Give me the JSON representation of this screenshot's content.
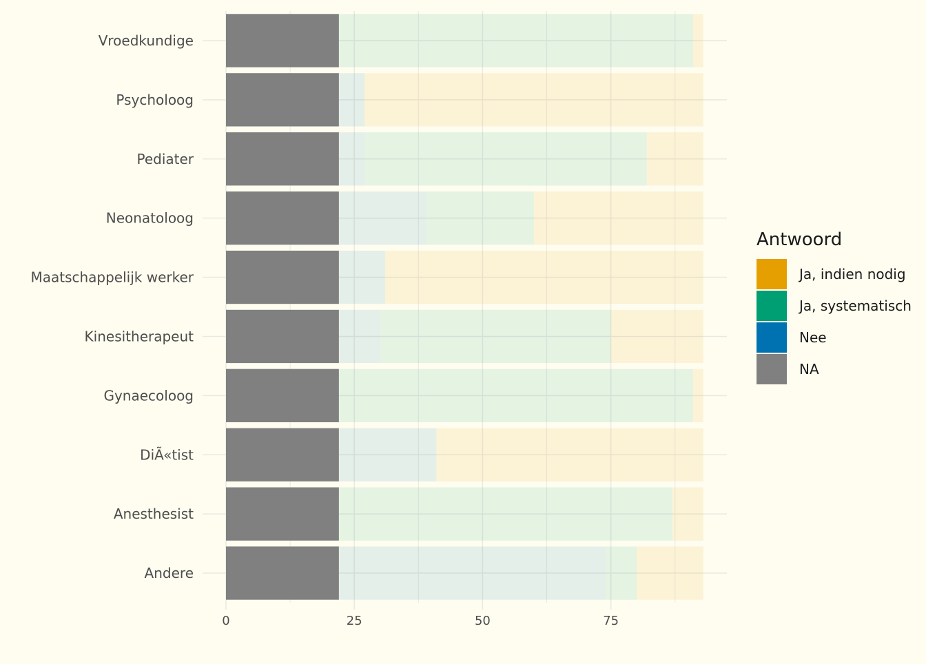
{
  "chart_data": {
    "type": "bar",
    "orientation": "horizontal",
    "stacked": true,
    "categories": [
      "Andere",
      "Anesthesist",
      "DiÃ«tist",
      "Gynaecoloog",
      "Kinesitherapeut",
      "Maatschappelijk werker",
      "Neonatoloog",
      "Pediater",
      "Psycholoog",
      "Vroedkundige"
    ],
    "series": [
      {
        "name": "NA",
        "color": "#808080",
        "values": [
          22,
          22,
          22,
          22,
          22,
          22,
          22,
          22,
          22,
          22
        ]
      },
      {
        "name": "Nee",
        "color": "#0072B2",
        "values": [
          52,
          0,
          19,
          0,
          8,
          9,
          17,
          5,
          5,
          0
        ]
      },
      {
        "name": "Ja, systematisch",
        "color": "#009E73",
        "values": [
          6,
          65,
          0,
          69,
          45,
          0,
          21,
          55,
          0,
          69
        ]
      },
      {
        "name": "Ja, indien nodig",
        "color": "#E69F00",
        "values": [
          13,
          6,
          52,
          2,
          18,
          62,
          33,
          11,
          66,
          2
        ]
      }
    ],
    "xlim": [
      0,
      97.6
    ],
    "xticks": [
      "0",
      "25",
      "50",
      "75"
    ],
    "xlabel": "",
    "ylabel": "",
    "title": "",
    "grid": true,
    "legend_position": "right",
    "legend_title": "Antwoord",
    "legend_order": [
      "Ja, indien nodig",
      "Ja, systematisch",
      "Nee",
      "NA"
    ],
    "faded_series": [
      "Nee",
      "Ja, systematisch",
      "Ja, indien nodig"
    ]
  }
}
